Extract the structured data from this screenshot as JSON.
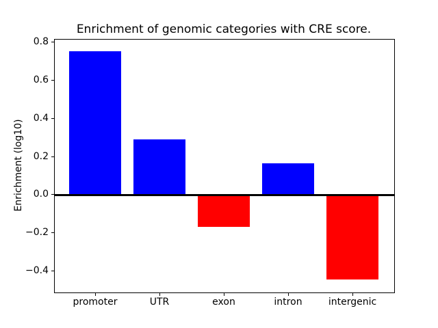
{
  "chart_data": {
    "type": "bar",
    "title": "Enrichment of genomic categories with CRE score.",
    "xlabel": "",
    "ylabel": "Enrichment (log10)",
    "categories": [
      "promoter",
      "UTR",
      "exon",
      "intron",
      "intergenic"
    ],
    "values": [
      0.755,
      0.29,
      -0.17,
      0.165,
      -0.445
    ],
    "bar_colors": [
      "#0000ff",
      "#0000ff",
      "#ff0000",
      "#0000ff",
      "#ff0000"
    ],
    "positive_color": "#0000ff",
    "negative_color": "#ff0000",
    "yticks": [
      0.8,
      0.6,
      0.4,
      0.2,
      0.0,
      -0.2,
      -0.4
    ],
    "ytick_labels": [
      "0.8",
      "0.6",
      "0.4",
      "0.2",
      "0.0",
      "−0.2",
      "−0.4"
    ],
    "ylim": [
      -0.511,
      0.8145
    ],
    "zero_line": true,
    "grid": false,
    "legend": null,
    "background_color": "#ffffff",
    "axis_color": "#000000"
  }
}
